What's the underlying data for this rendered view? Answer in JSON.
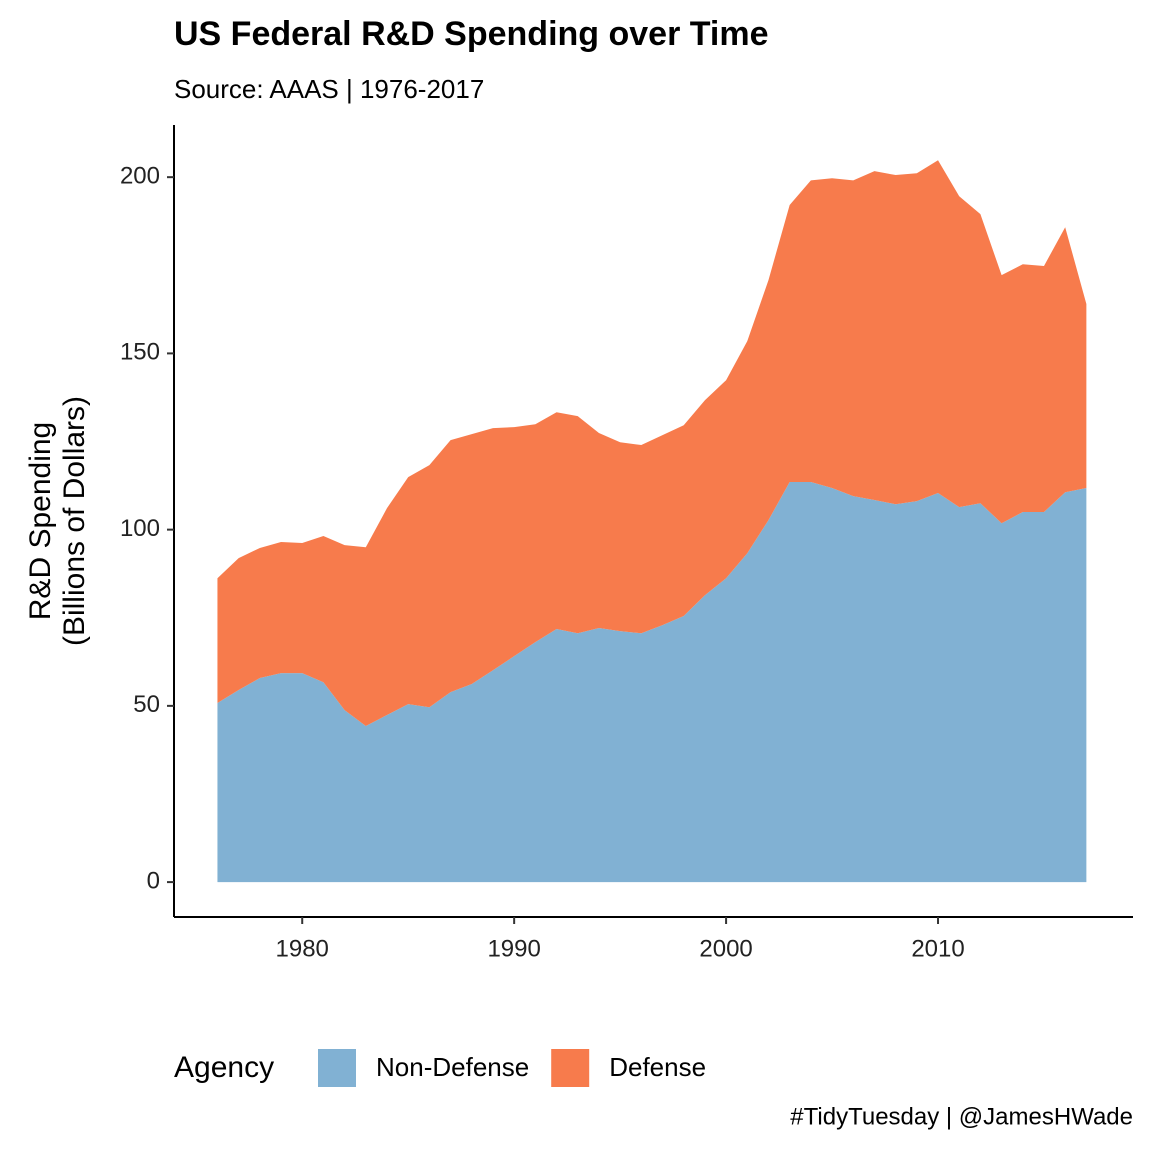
{
  "chart_data": {
    "type": "area",
    "stacked": true,
    "title": "US Federal R&D Spending over Time",
    "subtitle": "Source: AAAS | 1976-2017",
    "ylabel": [
      "R&D Spending",
      "(Billions of Dollars)"
    ],
    "legend_title": "Agency",
    "caption": "#TidyTuesday | @JamesHWade",
    "x": [
      1976,
      1977,
      1978,
      1979,
      1980,
      1981,
      1982,
      1983,
      1984,
      1985,
      1986,
      1987,
      1988,
      1989,
      1990,
      1991,
      1992,
      1993,
      1994,
      1995,
      1996,
      1997,
      1998,
      1999,
      2000,
      2001,
      2002,
      2003,
      2004,
      2005,
      2006,
      2007,
      2008,
      2009,
      2010,
      2011,
      2012,
      2013,
      2014,
      2015,
      2016,
      2017
    ],
    "series": [
      {
        "name": "Non-Defense",
        "color": "#81b1d3",
        "values": [
          50.8,
          54.5,
          57.9,
          59.3,
          59.3,
          56.7,
          48.8,
          44.3,
          47.4,
          50.5,
          49.6,
          53.9,
          56.2,
          60.1,
          64.1,
          68.1,
          71.8,
          70.6,
          72.1,
          71.2,
          70.6,
          72.9,
          75.5,
          81.4,
          86.2,
          93.3,
          102.7,
          113.5,
          113.5,
          111.8,
          109.5,
          108.4,
          107.2,
          108.1,
          110.4,
          106.4,
          107.5,
          101.8,
          105.0,
          105.0,
          110.6,
          111.8
        ]
      },
      {
        "name": "Defense",
        "color": "#f77b4c",
        "values": [
          35.4,
          37.4,
          36.9,
          37.2,
          36.9,
          41.5,
          46.8,
          50.7,
          58.7,
          64.4,
          68.7,
          71.5,
          70.9,
          68.7,
          65.0,
          61.8,
          61.5,
          61.6,
          55.3,
          53.6,
          53.4,
          53.9,
          54.1,
          55.3,
          56.2,
          60.2,
          68.1,
          78.6,
          85.6,
          87.9,
          89.6,
          93.3,
          93.4,
          93.0,
          94.4,
          88.2,
          82.0,
          70.4,
          70.3,
          69.8,
          75.2,
          52.2
        ]
      }
    ],
    "xlim": [
      1973.95,
      2019.2
    ],
    "xticks": [
      1980,
      1990,
      2000,
      2010
    ],
    "ylim": [
      -9.9,
      214.8
    ],
    "yticks": [
      0,
      50,
      100,
      150,
      200
    ],
    "grid": false,
    "legend_position": "bottom"
  }
}
